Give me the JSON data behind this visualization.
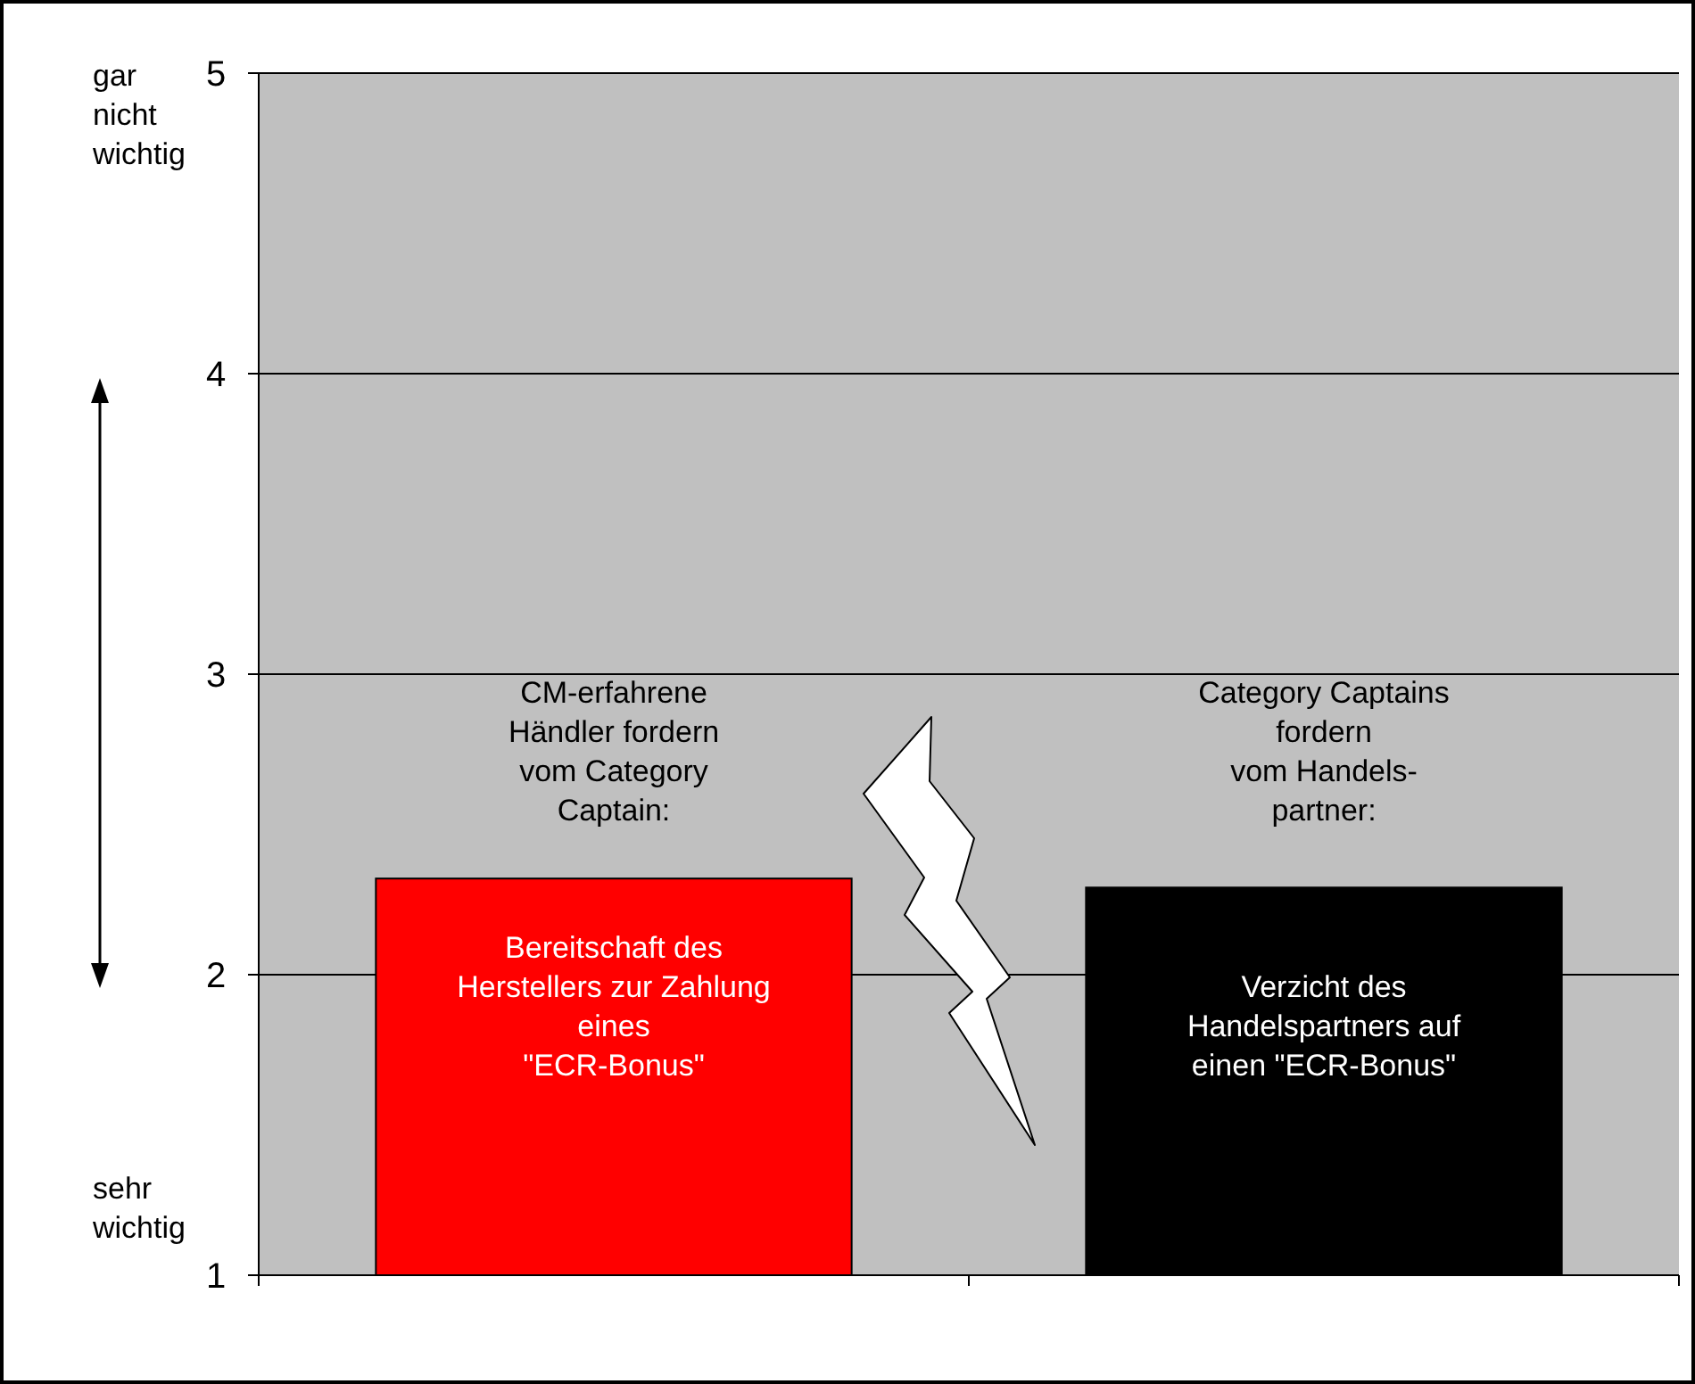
{
  "chart_data": {
    "type": "bar",
    "categories": [
      null,
      null
    ],
    "values": [
      2.32,
      2.29
    ],
    "colors": [
      "#ff0000",
      "#000000"
    ],
    "ylim": [
      1,
      5
    ],
    "yticks": [
      1,
      2,
      3,
      4,
      5
    ],
    "grid": "y",
    "annotations": [
      "CM-erfahrene\nHändler fordern\nvom Category\nCaptain:",
      "Category Captains\nfordern\nvom Handels-\npartner:",
      "Bereitschaft des\nHerstellers zur Zahlung\neines\n\"ECR-Bonus\"",
      "Verzicht des\nHandelspartners auf\neinen \"ECR-Bonus\"",
      "gar\nnicht\nwichtig",
      "sehr\nwichtig"
    ]
  }
}
